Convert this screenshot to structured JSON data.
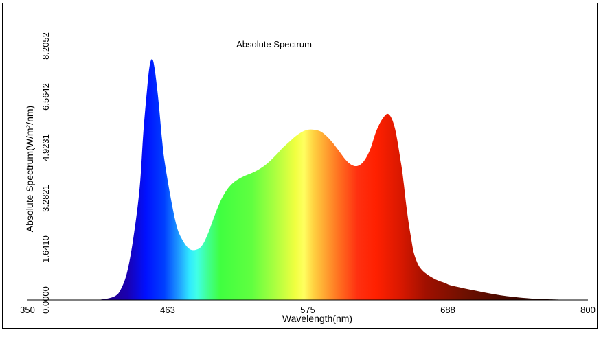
{
  "chart_data": {
    "type": "area",
    "title": "Absolute Spectrum",
    "xlabel": "Wavelength(nm)",
    "ylabel": "Absolute Spectrum(W/m²/nm)",
    "xlim": [
      350,
      800
    ],
    "ylim": [
      0,
      8.2052
    ],
    "x_ticks": [
      "350",
      "463",
      "575",
      "688",
      "800"
    ],
    "y_ticks": [
      "0.0000",
      "1.6410",
      "3.2821",
      "4.9231",
      "6.5642",
      "8.2052"
    ],
    "grid": false,
    "legend": "none",
    "fill": "spectral wavelength color gradient",
    "x": [
      350,
      400,
      410,
      420,
      425,
      430,
      435,
      440,
      443,
      446,
      448,
      450,
      452,
      455,
      458,
      460,
      465,
      470,
      475,
      480,
      485,
      490,
      495,
      500,
      505,
      510,
      515,
      520,
      525,
      530,
      535,
      540,
      545,
      550,
      555,
      560,
      565,
      570,
      575,
      580,
      585,
      590,
      595,
      600,
      605,
      610,
      615,
      620,
      625,
      630,
      635,
      640,
      645,
      650,
      652,
      654,
      656,
      658,
      660,
      663,
      666,
      670,
      675,
      680,
      685,
      690,
      700,
      710,
      720,
      730,
      740,
      750,
      760,
      770,
      780,
      800
    ],
    "y": [
      0.0,
      0.0,
      0.02,
      0.12,
      0.35,
      0.9,
      2.0,
      3.6,
      5.4,
      6.8,
      7.55,
      7.78,
      7.5,
      6.5,
      5.2,
      4.5,
      3.3,
      2.35,
      1.9,
      1.65,
      1.62,
      1.75,
      2.15,
      2.7,
      3.2,
      3.55,
      3.78,
      3.92,
      4.02,
      4.1,
      4.2,
      4.33,
      4.5,
      4.7,
      4.92,
      5.1,
      5.28,
      5.42,
      5.5,
      5.5,
      5.45,
      5.3,
      5.08,
      4.82,
      4.55,
      4.37,
      4.33,
      4.48,
      4.85,
      5.45,
      5.85,
      6.0,
      5.55,
      4.4,
      3.8,
      3.1,
      2.5,
      2.0,
      1.55,
      1.2,
      1.0,
      0.85,
      0.72,
      0.62,
      0.55,
      0.47,
      0.38,
      0.3,
      0.22,
      0.15,
      0.1,
      0.06,
      0.03,
      0.02,
      0.01,
      0.0
    ]
  }
}
